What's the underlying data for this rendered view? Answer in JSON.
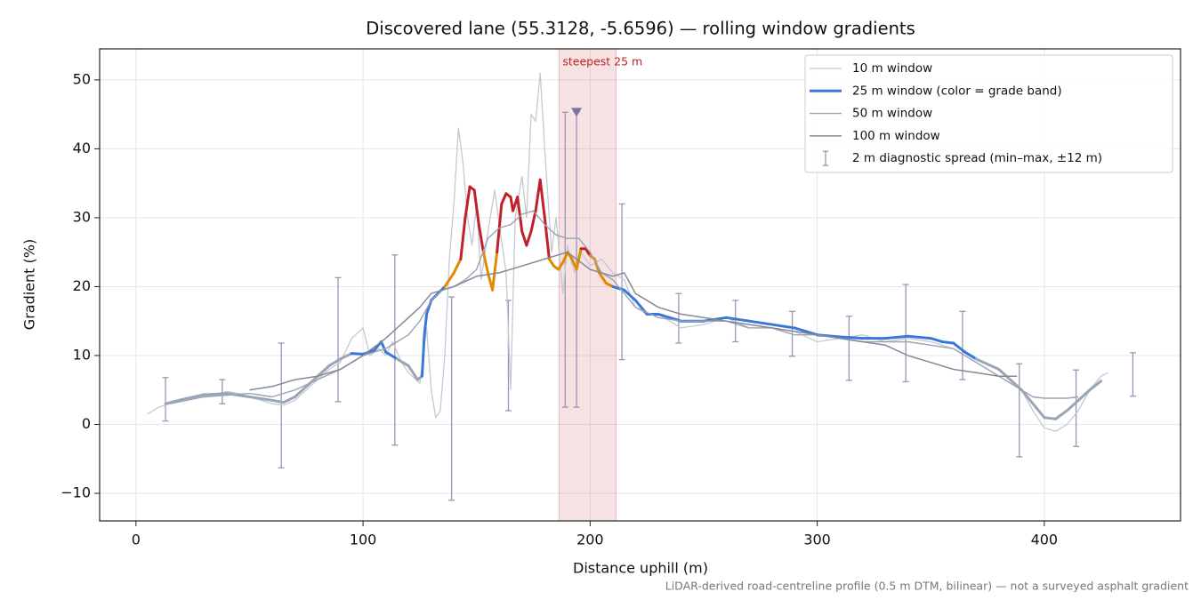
{
  "chart_data": {
    "type": "line",
    "title": "Discovered lane (55.3128, -5.6596) — rolling window gradients",
    "x_label": "Distance uphill (m)",
    "y_label": "Gradient (%)",
    "footnote": "LiDAR-derived road-centreline profile (0.5 m DTM, bilinear) — not a surveyed asphalt gradient",
    "xlim": [
      -16,
      460
    ],
    "ylim": [
      -14,
      54.5
    ],
    "xticks": [
      0,
      100,
      200,
      300,
      400
    ],
    "yticks": [
      {
        "value": -10,
        "label": "−10"
      },
      0,
      10,
      20,
      30,
      40,
      50
    ],
    "grid": true,
    "legend": "upper right",
    "series": [
      {
        "name": "10 m window",
        "color": "#c3c9d3",
        "x": [
          5,
          10,
          15,
          20,
          25,
          30,
          35,
          40,
          45,
          50,
          55,
          60,
          65,
          70,
          75,
          80,
          85,
          90,
          95,
          100,
          103,
          107,
          110,
          113,
          117,
          120,
          125,
          128,
          130,
          132,
          134,
          136,
          138,
          140,
          142,
          144,
          146,
          148,
          150,
          152,
          155,
          158,
          160,
          163,
          165,
          167,
          170,
          172,
          174,
          176,
          178,
          180,
          183,
          185,
          188,
          190,
          193,
          196,
          200,
          205,
          210,
          215,
          220,
          225,
          230,
          235,
          240,
          250,
          260,
          270,
          280,
          290,
          300,
          310,
          320,
          330,
          340,
          350,
          360,
          370,
          380,
          390,
          395,
          400,
          405,
          410,
          415,
          420,
          425,
          428
        ],
        "values": [
          1.5,
          2.5,
          3,
          3.5,
          4,
          4.5,
          4.2,
          4.8,
          4.5,
          4,
          3.5,
          3,
          2.8,
          3.5,
          5,
          6.5,
          8,
          9,
          12.5,
          14,
          10,
          11,
          10,
          12,
          9,
          7.5,
          6,
          14,
          5,
          1,
          2,
          10,
          24,
          32,
          43,
          38,
          30,
          26,
          32,
          21,
          28,
          34,
          29,
          22,
          5,
          30,
          36,
          30,
          45,
          44,
          51,
          40,
          25,
          30,
          19,
          26,
          22,
          25,
          23,
          24,
          22,
          21,
          17,
          16,
          16,
          15,
          14,
          14.5,
          15.5,
          14,
          14,
          13.5,
          12,
          12.5,
          13,
          12,
          12.5,
          12,
          11,
          9,
          7,
          5,
          2,
          -0.5,
          -1,
          0,
          2,
          5,
          7,
          7.5
        ]
      },
      {
        "name": "25 m window (color = grade band)",
        "color": "#3a78d8",
        "band_edges": [
          10,
          20,
          25
        ],
        "band_colors": [
          "#9aa6b7",
          "#3a78d8",
          "#e08a00",
          "#c0202a"
        ],
        "x": [
          13,
          20,
          30,
          40,
          50,
          60,
          65,
          70,
          75,
          80,
          85,
          90,
          95,
          100,
          105,
          108,
          110,
          115,
          120,
          124,
          126,
          127,
          128,
          130,
          133,
          136,
          140,
          143,
          145,
          147,
          149,
          151,
          153,
          155,
          157,
          159,
          161,
          163,
          165,
          166,
          168,
          170,
          172,
          174,
          176,
          178,
          180,
          182,
          184,
          186,
          188,
          190,
          192,
          194,
          196,
          198,
          200,
          202,
          204,
          207,
          210,
          215,
          220,
          225,
          230,
          235,
          240,
          250,
          260,
          270,
          280,
          290,
          300,
          310,
          320,
          330,
          340,
          350,
          355,
          360,
          365,
          370,
          380,
          390,
          395,
          400,
          405,
          410,
          415,
          420,
          425
        ],
        "values": [
          3,
          3.6,
          4.3,
          4.5,
          4,
          3.5,
          3.2,
          4,
          5.5,
          7,
          8.5,
          9.5,
          10.3,
          10.2,
          10.8,
          12,
          10.5,
          9.5,
          8.5,
          6.5,
          7,
          13,
          16,
          18,
          19,
          20,
          22,
          24,
          30,
          34.5,
          34,
          29,
          25,
          22,
          19.5,
          25,
          32,
          33.5,
          33,
          31,
          33,
          28,
          26,
          28,
          31,
          35.5,
          30,
          24,
          23,
          22.5,
          23.5,
          25,
          24,
          22.5,
          25.5,
          25.5,
          24.5,
          24,
          22,
          20.5,
          20,
          19.5,
          18,
          16,
          16,
          15.5,
          15,
          15,
          15.5,
          15,
          14.5,
          14,
          13,
          12.7,
          12.5,
          12.5,
          12.8,
          12.5,
          12,
          11.8,
          10.5,
          9.5,
          8,
          5,
          3,
          1,
          0.8,
          2,
          3.5,
          5,
          6.3
        ]
      },
      {
        "name": "50 m window",
        "color": "#9aa3b0",
        "x": [
          15,
          30,
          50,
          60,
          70,
          80,
          90,
          100,
          110,
          115,
          120,
          125,
          130,
          135,
          140,
          145,
          150,
          155,
          160,
          165,
          170,
          175,
          180,
          185,
          190,
          195,
          200,
          205,
          210,
          220,
          230,
          240,
          250,
          260,
          270,
          280,
          290,
          300,
          310,
          320,
          330,
          340,
          350,
          360,
          370,
          380,
          390,
          395,
          400,
          410,
          415
        ],
        "values": [
          3,
          4,
          4.5,
          4,
          5,
          6.5,
          8,
          10,
          11,
          12,
          13,
          15,
          18,
          19.5,
          20,
          21,
          22.5,
          27,
          28.5,
          29,
          30.5,
          31,
          29,
          27.5,
          27,
          27,
          25,
          22,
          21,
          17,
          15.5,
          15,
          15,
          15,
          14,
          14,
          13,
          13,
          12.5,
          12,
          12,
          12,
          11.5,
          11,
          9,
          7,
          5,
          4,
          3.8,
          3.8,
          4
        ]
      },
      {
        "name": "100 m window",
        "color": "#838a96",
        "x": [
          50,
          60,
          70,
          80,
          90,
          100,
          110,
          115,
          125,
          130,
          140,
          150,
          160,
          170,
          180,
          190,
          200,
          210,
          215,
          220,
          230,
          240,
          250,
          260,
          270,
          280,
          290,
          300,
          310,
          320,
          330,
          340,
          350,
          360,
          370,
          380,
          388
        ],
        "values": [
          5,
          5.5,
          6.5,
          7,
          8,
          10,
          12.5,
          14,
          17,
          19,
          20,
          21.5,
          22,
          23,
          24,
          25,
          22.5,
          21.5,
          22,
          19,
          17,
          16,
          15.5,
          15,
          14.5,
          14,
          13.5,
          13,
          12.5,
          12,
          11.5,
          10,
          9,
          8,
          7.5,
          7,
          7
        ]
      }
    ],
    "spread": {
      "name": "2 m diagnostic spread (min–max, ±12 m)",
      "color": "#9a94b8",
      "x": [
        13,
        38,
        64,
        89,
        114,
        139,
        164,
        189,
        194,
        214,
        239,
        264,
        289,
        314,
        339,
        364,
        389,
        414,
        439
      ],
      "min": [
        0.5,
        3,
        -6.3,
        3.3,
        -3,
        -11,
        2,
        2.5,
        2.5,
        9.4,
        11.8,
        12,
        9.9,
        6.4,
        6.2,
        6.5,
        -4.7,
        -3.2,
        4.1
      ],
      "max": [
        6.8,
        6.5,
        11.8,
        21.3,
        24.6,
        18.5,
        18,
        45.3,
        45.3,
        32,
        19,
        18,
        16.4,
        15.7,
        20.3,
        16.4,
        8.8,
        7.9,
        10.4
      ]
    },
    "steepest": {
      "label": "steepest 25 m",
      "x_start": 186.3,
      "x_end": 211.4,
      "color": "#c0202a",
      "marker_x": 194,
      "marker_y": 45.3,
      "marker_color": "#7a72a8"
    }
  }
}
